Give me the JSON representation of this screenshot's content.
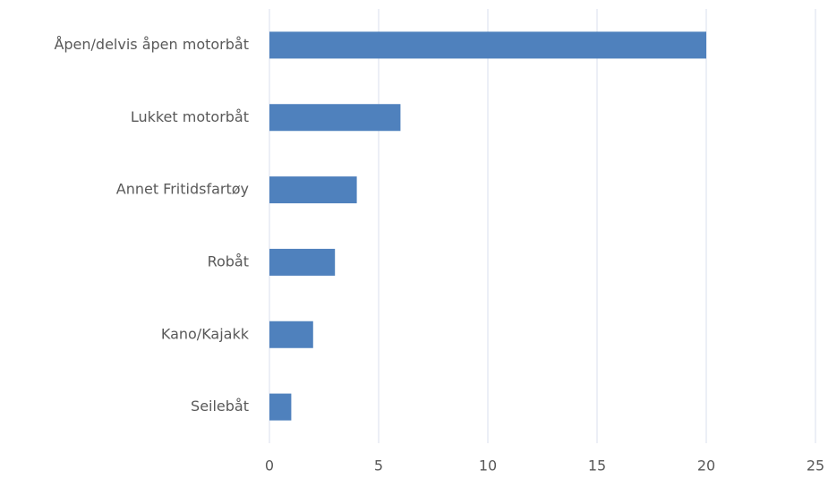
{
  "chart_data": {
    "type": "hbar",
    "categories": [
      "Åpen/delvis åpen motorbåt",
      "Lukket motorbåt",
      "Annet Fritidsfartøy",
      "Robåt",
      "Kano/Kajakk",
      "Seilebåt"
    ],
    "values": [
      20,
      6,
      4,
      3,
      2,
      1
    ],
    "color": "#4f81bd",
    "xlim": [
      0,
      25
    ],
    "xticks": [
      0,
      5,
      10,
      15,
      20,
      25
    ],
    "grid": true
  }
}
